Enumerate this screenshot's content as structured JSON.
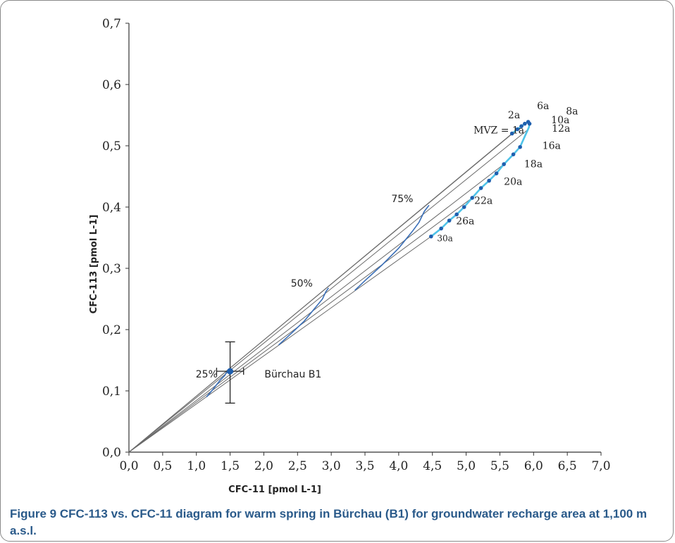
{
  "caption": {
    "label": "Figure 9",
    "text": " CFC-113 vs. CFC-11 diagram for warm spring in Bürchau (B1) for groundwater recharge area at 1,100 m a.s.l."
  },
  "chart_data": {
    "type": "line",
    "title": "",
    "xlabel": "CFC-11 [pmol L-1]",
    "ylabel": "CFC-113 [pmol L-1]",
    "xlim": [
      0,
      7
    ],
    "ylim": [
      0,
      0.7
    ],
    "x_ticks": [
      0,
      0.5,
      1,
      1.5,
      2,
      2.5,
      3,
      3.5,
      4,
      4.5,
      5,
      5.5,
      6,
      6.5,
      7
    ],
    "x_tick_labels": [
      "0,0",
      "0,5",
      "1,0",
      "1,5",
      "2,0",
      "2,5",
      "3,0",
      "3,5",
      "4,0",
      "4,5",
      "5,0",
      "5,5",
      "6,0",
      "6,5",
      "7,0"
    ],
    "y_ticks": [
      0,
      0.1,
      0.2,
      0.3,
      0.4,
      0.5,
      0.6,
      0.7
    ],
    "y_tick_labels": [
      "0,0",
      "0,1",
      "0,2",
      "0,3",
      "0,4",
      "0,5",
      "0,6",
      "0,7"
    ],
    "grid": false,
    "colors": {
      "curve": "#4fc3e8",
      "points": "#1f5fae",
      "mixing": "#3a6fb8",
      "lines": "#6a6a6a"
    },
    "mvz_curve": {
      "x": [
        5.68,
        5.76,
        5.82,
        5.87,
        5.92,
        5.94,
        5.93,
        5.86,
        5.8,
        5.7,
        5.56,
        5.45,
        5.34,
        5.22,
        5.09,
        4.97,
        4.86,
        4.75,
        4.63,
        4.48
      ],
      "y": [
        0.52,
        0.527,
        0.532,
        0.536,
        0.539,
        0.536,
        0.53,
        0.513,
        0.498,
        0.486,
        0.47,
        0.455,
        0.443,
        0.431,
        0.415,
        0.4,
        0.388,
        0.378,
        0.365,
        0.352
      ]
    },
    "mvz_points": {
      "x": [
        5.68,
        5.76,
        5.82,
        5.87,
        5.92,
        5.94,
        5.8,
        5.7,
        5.56,
        5.45,
        5.34,
        5.22,
        5.09,
        4.97,
        4.86,
        4.75,
        4.63,
        4.48
      ],
      "y": [
        0.52,
        0.527,
        0.532,
        0.536,
        0.539,
        0.536,
        0.498,
        0.486,
        0.47,
        0.455,
        0.443,
        0.431,
        0.415,
        0.4,
        0.388,
        0.378,
        0.365,
        0.352
      ]
    },
    "binary_mixing_lines": [
      {
        "x": [
          0,
          5.68
        ],
        "y": [
          0,
          0.52
        ]
      },
      {
        "x": [
          0,
          5.82
        ],
        "y": [
          0,
          0.532
        ]
      },
      {
        "x": [
          0,
          5.9
        ],
        "y": [
          0,
          0.525
        ]
      },
      {
        "x": [
          0,
          5.56
        ],
        "y": [
          0,
          0.47
        ]
      },
      {
        "x": [
          0,
          5.09
        ],
        "y": [
          0,
          0.415
        ]
      },
      {
        "x": [
          0,
          4.48
        ],
        "y": [
          0,
          0.352
        ]
      }
    ],
    "mixing_curves": [
      {
        "name": "75%",
        "x": [
          4.45,
          4.38,
          4.3,
          4.2,
          4.0,
          3.75,
          3.5,
          3.35
        ],
        "y": [
          0.403,
          0.393,
          0.375,
          0.36,
          0.333,
          0.305,
          0.28,
          0.264
        ]
      },
      {
        "name": "50%",
        "x": [
          2.96,
          2.92,
          2.87,
          2.78,
          2.6,
          2.4,
          2.22
        ],
        "y": [
          0.268,
          0.262,
          0.25,
          0.238,
          0.214,
          0.193,
          0.175
        ]
      },
      {
        "name": "25%",
        "x": [
          1.48,
          1.45,
          1.42,
          1.35,
          1.25,
          1.15
        ],
        "y": [
          0.134,
          0.131,
          0.125,
          0.117,
          0.103,
          0.09
        ]
      }
    ],
    "sample": {
      "name": "Bürchau B1",
      "x": 1.5,
      "y": 0.132,
      "x_error": [
        1.3,
        1.7
      ],
      "y_error": [
        0.08,
        0.18
      ]
    },
    "annotations": [
      {
        "text": "6a",
        "x": 6.05,
        "y": 0.56,
        "font": "serif"
      },
      {
        "text": "8a",
        "x": 6.48,
        "y": 0.551,
        "font": "serif"
      },
      {
        "text": "2a",
        "x": 5.62,
        "y": 0.545,
        "font": "serif"
      },
      {
        "text": "10a",
        "x": 6.26,
        "y": 0.537,
        "font": "serif"
      },
      {
        "text": "12a",
        "x": 6.27,
        "y": 0.523,
        "font": "serif"
      },
      {
        "text": "MVZ = 1a",
        "x": 5.11,
        "y": 0.52,
        "font": "serif"
      },
      {
        "text": "16a",
        "x": 6.13,
        "y": 0.495,
        "font": "serif"
      },
      {
        "text": "18a",
        "x": 5.86,
        "y": 0.465,
        "font": "serif"
      },
      {
        "text": "20a",
        "x": 5.56,
        "y": 0.436,
        "font": "serif"
      },
      {
        "text": "22a",
        "x": 5.12,
        "y": 0.405,
        "font": "serif"
      },
      {
        "text": "26a",
        "x": 4.85,
        "y": 0.372,
        "font": "serif"
      },
      {
        "text": "30a",
        "x": 4.57,
        "y": 0.344,
        "font": "serif",
        "small": true
      },
      {
        "text": "75%",
        "x": 3.89,
        "y": 0.408,
        "font": "sans"
      },
      {
        "text": "50%",
        "x": 2.4,
        "y": 0.27,
        "font": "sans"
      },
      {
        "text": "25%",
        "x": 0.99,
        "y": 0.122,
        "font": "sans"
      },
      {
        "text": "Bürchau B1",
        "x": 2.01,
        "y": 0.122,
        "font": "sans"
      }
    ]
  }
}
